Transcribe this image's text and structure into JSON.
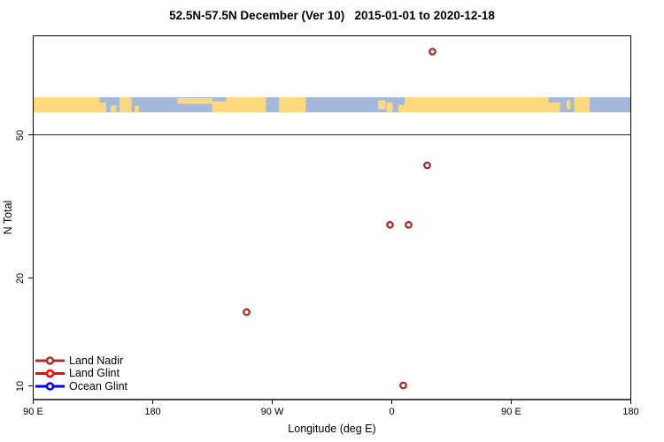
{
  "title": "52.5N-57.5N December (Ver 10)   2015-01-01 to 2020-12-18",
  "chart_data": {
    "type": "scatter",
    "title": "52.5N-57.5N December (Ver 10)   2015-01-01 to 2020-12-18",
    "xlabel": "Longitude (deg E)",
    "ylabel": "N Total",
    "x_axis": {
      "wrapped_longitude": true,
      "ticks": [
        {
          "axis_lon": 90,
          "label": "90 E"
        },
        {
          "axis_lon": 180,
          "label": "180"
        },
        {
          "axis_lon": 270,
          "label": "90 W"
        },
        {
          "axis_lon": 360,
          "label": "0"
        },
        {
          "axis_lon": 450,
          "label": "90 E"
        },
        {
          "axis_lon": 540,
          "label": "180"
        }
      ]
    },
    "y_axis": {
      "scale": "log",
      "ticks": [
        {
          "value": 50,
          "label": "50"
        },
        {
          "value": 20,
          "label": "20"
        },
        {
          "value": 10,
          "label": "10"
        }
      ]
    },
    "reference_line": {
      "y_value": 50
    },
    "series": [
      {
        "name": "Land Nadir",
        "color": "#A5322B",
        "points": [
          {
            "lon_deg_e": 31,
            "n": 85
          },
          {
            "lon_deg_e": 27,
            "n": 41
          },
          {
            "lon_deg_e": -1,
            "n": 28
          },
          {
            "lon_deg_e": 13,
            "n": 28
          },
          {
            "lon_deg_e": -109,
            "n": 16
          },
          {
            "lon_deg_e": 9,
            "n": 10
          }
        ]
      },
      {
        "name": "Land Glint",
        "color": "#FF0000",
        "points": []
      },
      {
        "name": "Ocean Glint",
        "color": "#0000FF",
        "points": []
      }
    ],
    "map_strip": {
      "land_color": "#FCD87E",
      "ocean_color": "#A4B8DB",
      "land_segments": [
        {
          "x0": 0.0,
          "x1": 0.112,
          "y0": 0,
          "y1": 1
        },
        {
          "x0": 0.112,
          "x1": 0.123,
          "y0": 0.35,
          "y1": 1
        },
        {
          "x0": 0.13,
          "x1": 0.14,
          "y0": 0.55,
          "y1": 1
        },
        {
          "x0": 0.145,
          "x1": 0.165,
          "y0": 0,
          "y1": 1
        },
        {
          "x0": 0.17,
          "x1": 0.178,
          "y0": 0.6,
          "y1": 1
        },
        {
          "x0": 0.242,
          "x1": 0.3,
          "y0": 0.05,
          "y1": 0.45
        },
        {
          "x0": 0.3,
          "x1": 0.324,
          "y0": 0.25,
          "y1": 1
        },
        {
          "x0": 0.324,
          "x1": 0.39,
          "y0": 0,
          "y1": 1
        },
        {
          "x0": 0.412,
          "x1": 0.457,
          "y0": 0,
          "y1": 1
        },
        {
          "x0": 0.578,
          "x1": 0.59,
          "y0": 0.2,
          "y1": 0.8
        },
        {
          "x0": 0.592,
          "x1": 0.602,
          "y0": 0.35,
          "y1": 1
        },
        {
          "x0": 0.612,
          "x1": 0.622,
          "y0": 0.5,
          "y1": 1
        },
        {
          "x0": 0.622,
          "x1": 0.863,
          "y0": 0,
          "y1": 1
        },
        {
          "x0": 0.863,
          "x1": 0.882,
          "y0": 0.35,
          "y1": 1
        },
        {
          "x0": 0.893,
          "x1": 0.9,
          "y0": 0.2,
          "y1": 0.75
        },
        {
          "x0": 0.906,
          "x1": 0.932,
          "y0": 0,
          "y1": 1
        }
      ]
    }
  },
  "legend": {
    "items": [
      {
        "label": "Land Nadir",
        "color": "#A5322B"
      },
      {
        "label": "Land Glint",
        "color": "#FF0000"
      },
      {
        "label": "Ocean Glint",
        "color": "#0000FF"
      }
    ]
  }
}
